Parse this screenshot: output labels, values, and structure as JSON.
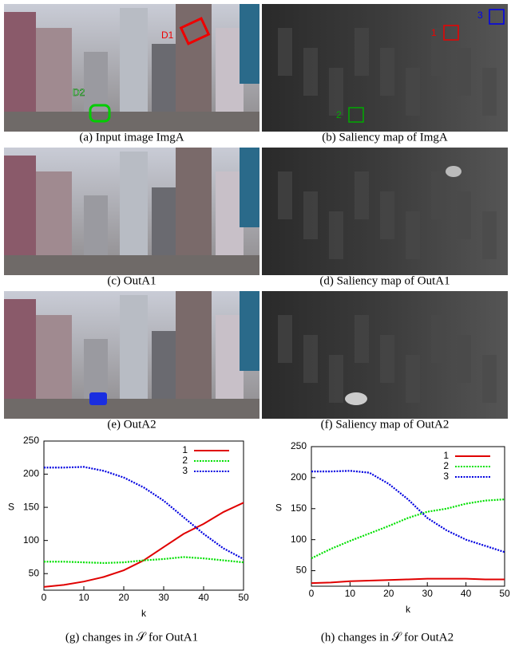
{
  "panels": [
    {
      "caption": "(a) Input image ImgA"
    },
    {
      "caption": "(b) Saliency map of ImgA"
    },
    {
      "caption": "(c) OutA1"
    },
    {
      "caption": "(d) Saliency map of OutA1"
    },
    {
      "caption": "(e) OutA2"
    },
    {
      "caption": "(f) Saliency map of OutA2"
    }
  ],
  "annotations": {
    "d1": "D1",
    "d2": "D2",
    "box1": "1",
    "box2": "2",
    "box3": "3"
  },
  "chart_data": [
    {
      "type": "line",
      "caption": "(g) changes in 𝒮 for OutA1",
      "xlabel": "k",
      "ylabel": "S",
      "x": [
        0,
        5,
        10,
        15,
        20,
        25,
        30,
        35,
        40,
        45,
        50
      ],
      "xlim": [
        0,
        50
      ],
      "xticks": [
        0,
        10,
        20,
        30,
        40,
        50
      ],
      "ylim": [
        25,
        250
      ],
      "yticks": [
        50,
        100,
        150,
        200,
        250
      ],
      "legend": "upper right",
      "series": [
        {
          "name": "1",
          "color": "#e00000",
          "values": [
            30,
            33,
            38,
            45,
            55,
            70,
            90,
            110,
            125,
            143,
            157
          ]
        },
        {
          "name": "2",
          "color": "#00e000",
          "values": [
            68,
            68,
            67,
            66,
            67,
            70,
            72,
            75,
            73,
            70,
            67
          ]
        },
        {
          "name": "3",
          "color": "#0000e0",
          "values": [
            210,
            210,
            211,
            205,
            195,
            180,
            160,
            135,
            110,
            88,
            72
          ]
        }
      ]
    },
    {
      "type": "line",
      "caption": "(h) changes in 𝒮 for OutA2",
      "xlabel": "k",
      "ylabel": "S",
      "x": [
        0,
        5,
        10,
        15,
        20,
        25,
        30,
        35,
        40,
        45,
        50
      ],
      "xlim": [
        0,
        50
      ],
      "xticks": [
        0,
        10,
        20,
        30,
        40,
        50
      ],
      "ylim": [
        25,
        250
      ],
      "yticks": [
        50,
        100,
        150,
        200,
        250
      ],
      "legend": "upper right",
      "series": [
        {
          "name": "1",
          "color": "#e00000",
          "values": [
            30,
            31,
            33,
            34,
            35,
            36,
            37,
            37,
            37,
            36,
            36
          ]
        },
        {
          "name": "2",
          "color": "#00e000",
          "values": [
            70,
            85,
            98,
            110,
            122,
            135,
            145,
            150,
            158,
            163,
            165
          ]
        },
        {
          "name": "3",
          "color": "#0000e0",
          "values": [
            210,
            210,
            211,
            208,
            190,
            165,
            135,
            115,
            100,
            90,
            80
          ]
        }
      ]
    }
  ]
}
